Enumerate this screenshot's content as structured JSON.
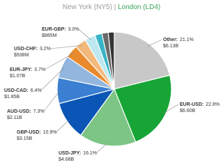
{
  "chart_data": {
    "type": "pie",
    "title": {
      "left": "New York (NY5)",
      "separator": "|",
      "right": "London (LD4)"
    },
    "label_separator": ":",
    "categories": [
      "Other",
      "EUR-USD",
      "USD-JPY",
      "GBP-USD",
      "AUD-USD",
      "USD-CAD",
      "EUR-JPY",
      "USD-CHF",
      "EUR-GBP",
      null,
      null,
      null
    ],
    "values": [
      21.1,
      22.8,
      16.1,
      10.9,
      7.3,
      6.4,
      3.7,
      3.2,
      3.0,
      2.0,
      1.8,
      1.7
    ],
    "value_labels": [
      "21.1%",
      "22.8%",
      "16.1%",
      "10.9%",
      "7.3%",
      "6.4%",
      "3.7%",
      "3.2%",
      "3.0%",
      null,
      null,
      null
    ],
    "amount_labels": [
      "$6.13B",
      "$6.60B",
      "$4.68B",
      "$3.15B",
      "$2.11B",
      "$1.85B",
      "$1.07B",
      "$938M",
      "$885M",
      null,
      null,
      null
    ],
    "colors": [
      "#c8c8c8",
      "#17a535",
      "#7cc585",
      "#0a55b5",
      "#3a7fd1",
      "#92b6de",
      "#e98a2c",
      "#f3b97c",
      "#bde8f0",
      "#38b5c7",
      "#6a6a6a",
      "#353535"
    ]
  }
}
